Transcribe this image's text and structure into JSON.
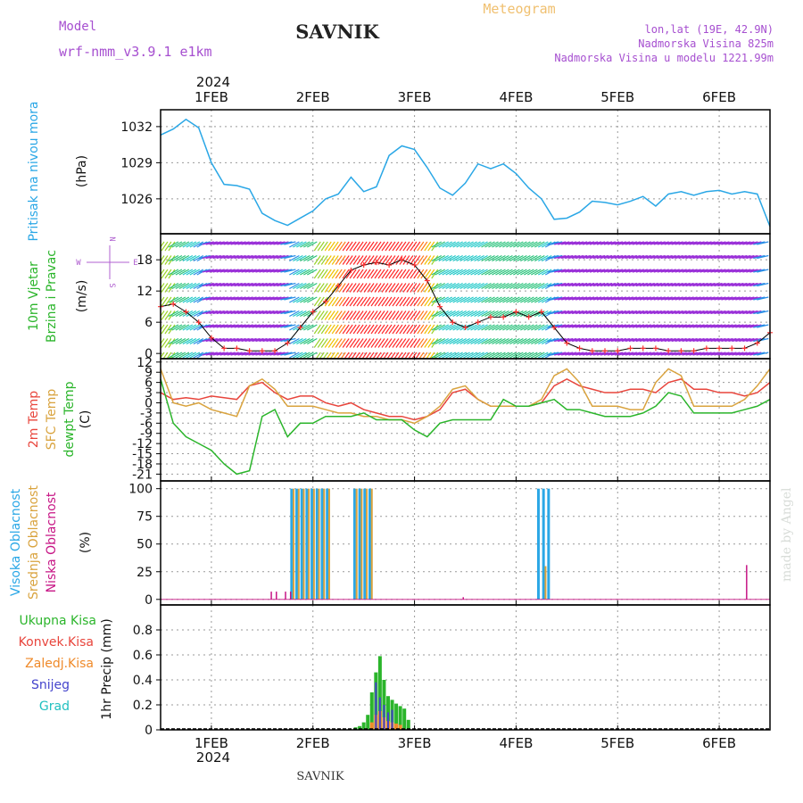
{
  "header": {
    "meteogram_label": "Meteogram",
    "model_label": "Model",
    "model_name": "wrf-nmm_v3.9.1 e1km",
    "station": "SAVNIK",
    "lonlat": "lon,lat (19E, 42.9N)",
    "elevation": "Nadmorska Visina 825m",
    "model_elevation": "Nadmorska Visina u modelu 1221.99m",
    "year": "2024",
    "footer_station": "SAVNIK",
    "watermark": "made by Angel"
  },
  "colors": {
    "pressure": "#2aa7e6",
    "temp2m": "#e8453c",
    "sfc_temp": "#d9a33e",
    "dewpt": "#2bb52b",
    "high_cloud": "#2aa7e6",
    "mid_cloud": "#d9a33e",
    "low_cloud": "#c71585",
    "total_precip": "#2bb52b",
    "conv_precip": "#e8453c",
    "frozen_precip": "#ef8a2a",
    "snow": "#4444cc",
    "hail": "#20c0c0",
    "wind_label": "#2bb52b",
    "compass": "#b060d0",
    "header_purple": "#a64fd0",
    "meteogram": "#f0c070"
  },
  "chart_data": [
    {
      "type": "line",
      "panel": "pressure",
      "x_ticks": [
        "1FEB",
        "2FEB",
        "3FEB",
        "4FEB",
        "5FEB",
        "6FEB"
      ],
      "y_ticks": [
        "1032",
        "1029",
        "1026"
      ],
      "ylim": [
        1023.1,
        1033.4
      ],
      "ylabel_left": "Pritisak na nivou mora",
      "ylabel_right": "(hPa)",
      "series": [
        {
          "x": [
            0.5,
            0.625,
            0.75,
            0.875,
            1.0,
            1.125,
            1.25,
            1.375,
            1.5,
            1.625,
            1.75,
            1.875,
            2.0,
            2.125,
            2.25,
            2.375,
            2.5,
            2.625,
            2.75,
            2.875,
            3.0,
            3.125,
            3.25,
            3.375,
            3.5,
            3.625,
            3.75,
            3.875,
            4.0,
            4.125,
            4.25,
            4.375,
            4.5,
            4.625,
            4.75,
            4.875,
            5.0,
            5.125,
            5.25,
            5.375,
            5.5,
            5.625,
            5.75,
            5.875,
            6.0,
            6.125,
            6.25,
            6.375,
            6.5
          ],
          "values": [
            1031.3,
            1031.8,
            1032.6,
            1031.9,
            1029.0,
            1027.2,
            1027.1,
            1026.8,
            1024.8,
            1024.2,
            1023.8,
            1024.4,
            1025.0,
            1026.0,
            1026.4,
            1027.8,
            1026.6,
            1027.0,
            1029.6,
            1030.4,
            1030.1,
            1028.6,
            1026.9,
            1026.3,
            1027.3,
            1028.9,
            1028.5,
            1028.9,
            1028.1,
            1026.9,
            1026.0,
            1024.3,
            1024.4,
            1024.9,
            1025.8,
            1025.7,
            1025.5,
            1025.8,
            1026.2,
            1025.4,
            1026.4,
            1026.6,
            1026.3,
            1026.6,
            1026.7,
            1026.4,
            1026.6,
            1026.4,
            1023.7
          ]
        }
      ]
    },
    {
      "type": "line",
      "panel": "wind",
      "y_ticks": [
        "18",
        "12",
        "6",
        "0"
      ],
      "ylim": [
        -1,
        23
      ],
      "ylabel_left": "10m Vjetar Brzina i Pravac",
      "ylabel_right": "(m/s)",
      "compass": {
        "n": "N",
        "s": "S",
        "e": "E",
        "w": "W"
      },
      "series": [
        {
          "name": "speed",
          "x": [
            0.5,
            0.625,
            0.75,
            0.875,
            1.0,
            1.125,
            1.25,
            1.375,
            1.5,
            1.625,
            1.75,
            1.875,
            2.0,
            2.125,
            2.25,
            2.375,
            2.5,
            2.625,
            2.75,
            2.875,
            3.0,
            3.125,
            3.25,
            3.375,
            3.5,
            3.625,
            3.75,
            3.875,
            4.0,
            4.125,
            4.25,
            4.375,
            4.5,
            4.625,
            4.75,
            4.875,
            5.0,
            5.125,
            5.25,
            5.375,
            5.5,
            5.625,
            5.75,
            5.875,
            6.0,
            6.125,
            6.25,
            6.375,
            6.5
          ],
          "values": [
            9,
            9.5,
            8,
            6,
            3,
            1,
            1,
            0.5,
            0.5,
            0.5,
            2,
            5,
            8,
            10,
            13,
            16,
            17,
            17.5,
            17,
            18,
            17,
            14,
            9,
            6,
            5,
            6,
            7,
            7,
            8,
            7,
            8,
            5,
            2,
            1,
            0.5,
            0.5,
            0.5,
            1,
            1,
            1,
            0.5,
            0.5,
            0.5,
            1,
            1,
            1,
            1,
            2,
            4
          ]
        }
      ]
    },
    {
      "type": "line",
      "panel": "temperature",
      "y_ticks": [
        "12",
        "9",
        "6",
        "3",
        "0",
        "-3",
        "-6",
        "-9",
        "-12",
        "-15",
        "-18",
        "-21"
      ],
      "ylim": [
        -23,
        13
      ],
      "ylabel_left": [
        "2m Temp",
        "SFC Temp",
        "dewpt Temp"
      ],
      "ylabel_right": "(C)",
      "x": [
        0.5,
        0.625,
        0.75,
        0.875,
        1.0,
        1.125,
        1.25,
        1.375,
        1.5,
        1.625,
        1.75,
        1.875,
        2.0,
        2.125,
        2.25,
        2.375,
        2.5,
        2.625,
        2.75,
        2.875,
        3.0,
        3.125,
        3.25,
        3.375,
        3.5,
        3.625,
        3.75,
        3.875,
        4.0,
        4.125,
        4.25,
        4.375,
        4.5,
        4.625,
        4.75,
        4.875,
        5.0,
        5.125,
        5.25,
        5.375,
        5.5,
        5.625,
        5.75,
        5.875,
        6.0,
        6.125,
        6.25,
        6.375,
        6.5
      ],
      "series": [
        {
          "name": "2m Temp",
          "values": [
            3,
            1,
            1.5,
            1,
            2,
            1.5,
            1,
            5,
            6,
            3,
            1,
            2,
            2,
            0,
            -1,
            0,
            -2,
            -3,
            -4,
            -4,
            -5,
            -4,
            -2,
            3,
            4,
            1,
            -1,
            -1,
            -1,
            -1,
            0,
            5,
            7,
            5,
            4,
            3,
            3,
            4,
            4,
            3,
            6,
            7,
            4,
            4,
            3,
            3,
            2,
            3,
            6
          ]
        },
        {
          "name": "SFC Temp",
          "values": [
            10,
            0,
            -1,
            0,
            -2,
            -3,
            -4,
            5,
            7,
            4,
            -1,
            -1,
            -1,
            -2,
            -3,
            -3,
            -4,
            -4,
            -5,
            -5,
            -6,
            -4,
            -1,
            4,
            5,
            1,
            -1,
            -1,
            -1,
            -1,
            1,
            8,
            10,
            6,
            -1,
            -1,
            -1,
            -2,
            -2,
            6,
            10,
            8,
            -1,
            -1,
            -1,
            -1,
            1,
            5,
            10
          ]
        },
        {
          "name": "dewpt Temp",
          "values": [
            7,
            -6,
            -10,
            -12,
            -14,
            -18,
            -21,
            -20,
            -4,
            -2,
            -10,
            -6,
            -6,
            -4,
            -4,
            -4,
            -3,
            -5,
            -5,
            -5,
            -8,
            -10,
            -6,
            -5,
            -5,
            -5,
            -5,
            1,
            -1,
            -1,
            0,
            1,
            -2,
            -2,
            -3,
            -4,
            -4,
            -4,
            -3,
            -1,
            3,
            2,
            -3,
            -3,
            -3,
            -3,
            -2,
            -1,
            1
          ]
        }
      ]
    },
    {
      "type": "bar",
      "panel": "cloud",
      "y_ticks": [
        "100",
        "75",
        "50",
        "25",
        "0"
      ],
      "ylim": [
        -5,
        107
      ],
      "ylabel_left": [
        "Visoka Oblacnost",
        "Srednja Oblacnost",
        "Niska Oblacnost"
      ],
      "ylabel_right": "(%)",
      "series": [
        {
          "name": "Visoka Oblacnost",
          "x": [
            1.79,
            1.84,
            1.89,
            1.94,
            1.99,
            2.04,
            2.09,
            2.14,
            2.41,
            2.46,
            2.51,
            2.56,
            4.22,
            4.27,
            4.32
          ],
          "values": [
            100,
            100,
            100,
            100,
            100,
            100,
            100,
            100,
            100,
            100,
            100,
            100,
            100,
            100,
            100
          ]
        },
        {
          "name": "Srednja Oblacnost",
          "x": [
            1.81,
            1.86,
            1.91,
            1.96,
            2.01,
            2.06,
            2.11,
            2.16,
            2.43,
            2.48,
            2.53,
            2.58,
            4.29
          ],
          "values": [
            100,
            100,
            100,
            100,
            100,
            100,
            100,
            100,
            100,
            100,
            100,
            100,
            30
          ]
        },
        {
          "name": "Niska Oblacnost",
          "x": [
            1.59,
            1.64,
            1.73,
            1.78,
            3.48,
            6.27
          ],
          "values": [
            7,
            7,
            7,
            7,
            2,
            31
          ]
        }
      ]
    },
    {
      "type": "bar",
      "panel": "precip",
      "y_ticks": [
        "0.8",
        "0.6",
        "0.4",
        "0.2",
        "0"
      ],
      "ylim": [
        0,
        1.0
      ],
      "ylabel_left": [
        "Ukupna Kisa",
        "Konvek.Kisa",
        "Zaledj.Kisa",
        "Snijeg",
        "Grad"
      ],
      "ylabel_right": "1hr Precip (mm)",
      "x_ticks": [
        "1FEB",
        "2FEB",
        "3FEB",
        "4FEB",
        "5FEB",
        "6FEB"
      ],
      "series": [
        {
          "name": "Ukupna Kisa",
          "x": [
            2.42,
            2.46,
            2.5,
            2.54,
            2.58,
            2.62,
            2.66,
            2.7,
            2.74,
            2.78,
            2.82,
            2.86,
            2.9,
            2.94
          ],
          "values": [
            0.02,
            0.03,
            0.06,
            0.12,
            0.3,
            0.46,
            0.59,
            0.4,
            0.27,
            0.24,
            0.21,
            0.19,
            0.17,
            0.08
          ]
        },
        {
          "name": "Zaledj.Kisa",
          "x": [
            2.58,
            2.62,
            2.66,
            2.7,
            2.74,
            2.78,
            2.82,
            2.86
          ],
          "values": [
            0.06,
            0.12,
            0.15,
            0.1,
            0.07,
            0.06,
            0.05,
            0.04
          ]
        },
        {
          "name": "Snijeg",
          "x": [
            2.62,
            2.66,
            2.7,
            2.74,
            2.78
          ],
          "values": [
            0.38,
            0.26,
            0.2,
            0.14,
            0.16
          ]
        }
      ]
    }
  ]
}
